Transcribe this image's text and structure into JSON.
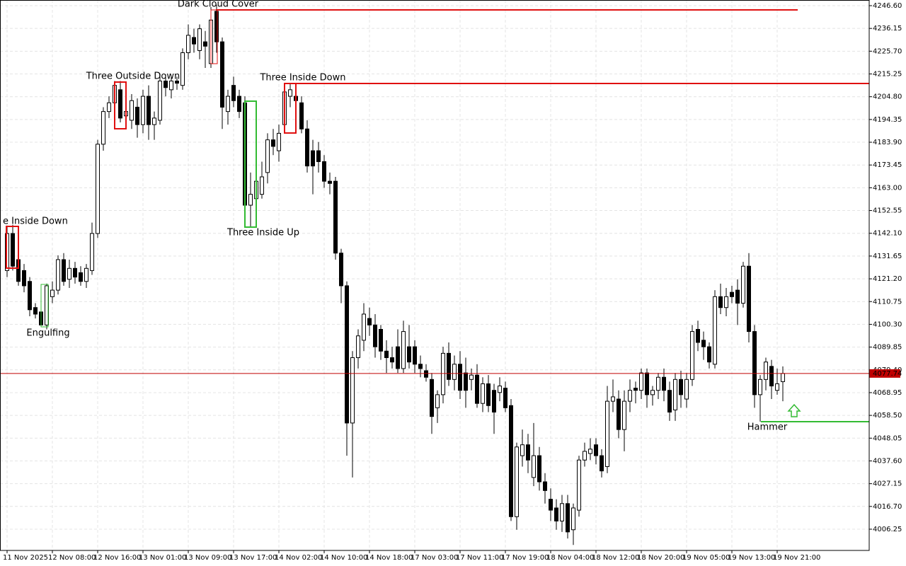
{
  "chart_data": {
    "type": "candlestick",
    "categories": [
      "11 Nov 2025",
      null,
      null,
      null,
      null,
      null,
      null,
      null,
      "12 Nov 08:00",
      null,
      null,
      null,
      null,
      null,
      null,
      null,
      "12 Nov 16:00",
      null,
      null,
      null,
      null,
      null,
      null,
      null,
      "13 Nov 01:00",
      null,
      null,
      null,
      null,
      null,
      null,
      null,
      "13 Nov 09:00",
      null,
      null,
      null,
      null,
      null,
      null,
      null,
      "13 Nov 17:00",
      null,
      null,
      null,
      null,
      null,
      null,
      null,
      "14 Nov 02:00",
      null,
      null,
      null,
      null,
      null,
      null,
      null,
      "14 Nov 10:00",
      null,
      null,
      null,
      null,
      null,
      null,
      null,
      "14 Nov 18:00",
      null,
      null,
      null,
      null,
      null,
      null,
      null,
      "17 Nov 03:00",
      null,
      null,
      null,
      null,
      null,
      null,
      null,
      "17 Nov 11:00",
      null,
      null,
      null,
      null,
      null,
      null,
      null,
      "17 Nov 19:00",
      null,
      null,
      null,
      null,
      null,
      null,
      null,
      "18 Nov 04:00",
      null,
      null,
      null,
      null,
      null,
      null,
      null,
      "18 Nov 12:00",
      null,
      null,
      null,
      null,
      null,
      null,
      null,
      "18 Nov 20:00",
      null,
      null,
      null,
      null,
      null,
      null,
      null,
      "19 Nov 05:00",
      null,
      null,
      null,
      null,
      null,
      null,
      null,
      "19 Nov 13:00",
      null,
      null,
      null,
      null,
      null,
      null,
      null,
      "19 Nov 21:00",
      null
    ],
    "ohlc": [
      [
        4125,
        4145,
        4122,
        4142
      ],
      [
        4142,
        4146,
        4125,
        4127
      ],
      [
        4130,
        4133,
        4118,
        4120
      ],
      [
        4125,
        4128,
        4115,
        4118
      ],
      [
        4120,
        4122,
        4104,
        4107
      ],
      [
        4108,
        4110,
        4103,
        4105
      ],
      [
        4106,
        4108,
        4099,
        4100
      ],
      [
        4100,
        4119,
        4098,
        4118
      ],
      [
        4113,
        4120,
        4110,
        4116
      ],
      [
        4116,
        4132,
        4114,
        4130
      ],
      [
        4130,
        4133,
        4118,
        4120
      ],
      [
        4121,
        4130,
        4117,
        4126
      ],
      [
        4126,
        4129,
        4119,
        4122
      ],
      [
        4124,
        4127,
        4118,
        4120
      ],
      [
        4120,
        4128,
        4117,
        4126
      ],
      [
        4125,
        4147,
        4123,
        4142
      ],
      [
        4142,
        4185,
        4140,
        4183
      ],
      [
        4183,
        4200,
        4180,
        4198
      ],
      [
        4198,
        4205,
        4195,
        4202
      ],
      [
        4202,
        4212,
        4200,
        4210
      ],
      [
        4208,
        4212,
        4193,
        4195
      ],
      [
        4196,
        4200,
        4192,
        4198
      ],
      [
        4194,
        4206,
        4190,
        4203
      ],
      [
        4200,
        4204,
        4186,
        4192
      ],
      [
        4192,
        4208,
        4188,
        4205
      ],
      [
        4205,
        4210,
        4185,
        4192
      ],
      [
        4192,
        4198,
        4185,
        4195
      ],
      [
        4194,
        4214,
        4192,
        4212
      ],
      [
        4212,
        4215,
        4205,
        4209
      ],
      [
        4208,
        4214,
        4204,
        4212
      ],
      [
        4212,
        4214,
        4208,
        4211
      ],
      [
        4210,
        4227,
        4208,
        4225
      ],
      [
        4225,
        4238,
        4222,
        4233
      ],
      [
        4232,
        4236,
        4225,
        4229
      ],
      [
        4226,
        4238,
        4222,
        4236
      ],
      [
        4230,
        4235,
        4218,
        4228
      ],
      [
        4220,
        4246,
        4218,
        4240
      ],
      [
        4244,
        4247,
        4225,
        4230
      ],
      [
        4230,
        4232,
        4190,
        4200
      ],
      [
        4198,
        4208,
        4192,
        4205
      ],
      [
        4210,
        4214,
        4200,
        4203
      ],
      [
        4205,
        4208,
        4195,
        4198
      ],
      [
        4202,
        4205,
        4145,
        4155
      ],
      [
        4155,
        4170,
        4145,
        4160
      ],
      [
        4158,
        4172,
        4155,
        4166
      ],
      [
        4160,
        4175,
        4158,
        4168
      ],
      [
        4170,
        4188,
        4165,
        4185
      ],
      [
        4185,
        4190,
        4178,
        4182
      ],
      [
        4180,
        4192,
        4175,
        4188
      ],
      [
        4192,
        4210,
        4188,
        4207
      ],
      [
        4205,
        4211,
        4200,
        4208
      ],
      [
        4205,
        4207,
        4196,
        4203
      ],
      [
        4202,
        4205,
        4188,
        4190
      ],
      [
        4190,
        4194,
        4170,
        4173
      ],
      [
        4180,
        4185,
        4160,
        4173
      ],
      [
        4180,
        4184,
        4170,
        4175
      ],
      [
        4175,
        4178,
        4163,
        4166
      ],
      [
        4166,
        4170,
        4160,
        4165
      ],
      [
        4166,
        4168,
        4130,
        4133
      ],
      [
        4133,
        4135,
        4110,
        4118
      ],
      [
        4118,
        4120,
        4040,
        4055
      ],
      [
        4055,
        4088,
        4030,
        4085
      ],
      [
        4085,
        4098,
        4080,
        4095
      ],
      [
        4093,
        4110,
        4088,
        4105
      ],
      [
        4103,
        4108,
        4095,
        4100
      ],
      [
        4100,
        4105,
        4085,
        4090
      ],
      [
        4098,
        4100,
        4084,
        4088
      ],
      [
        4088,
        4093,
        4078,
        4085
      ],
      [
        4085,
        4090,
        4080,
        4083
      ],
      [
        4090,
        4098,
        4078,
        4080
      ],
      [
        4080,
        4102,
        4078,
        4097
      ],
      [
        4090,
        4100,
        4080,
        4083
      ],
      [
        4090,
        4093,
        4078,
        4082
      ],
      [
        4082,
        4086,
        4076,
        4080
      ],
      [
        4079,
        4082,
        4074,
        4076
      ],
      [
        4075,
        4078,
        4050,
        4058
      ],
      [
        4062,
        4070,
        4055,
        4068
      ],
      [
        4068,
        4090,
        4064,
        4087
      ],
      [
        4087,
        4092,
        4072,
        4075
      ],
      [
        4075,
        4086,
        4070,
        4082
      ],
      [
        4082,
        4088,
        4066,
        4070
      ],
      [
        4078,
        4085,
        4062,
        4070
      ],
      [
        4075,
        4080,
        4070,
        4077
      ],
      [
        4077,
        4082,
        4062,
        4064
      ],
      [
        4064,
        4076,
        4060,
        4073
      ],
      [
        4073,
        4077,
        4060,
        4063
      ],
      [
        4070,
        4073,
        4050,
        4060
      ],
      [
        4069,
        4076,
        4065,
        4072
      ],
      [
        4071,
        4074,
        4060,
        4062
      ],
      [
        4063,
        4066,
        4010,
        4012
      ],
      [
        4012,
        4046,
        4006,
        4044
      ],
      [
        4040,
        4052,
        4035,
        4045
      ],
      [
        4045,
        4050,
        4032,
        4038
      ],
      [
        4030,
        4055,
        4026,
        4040
      ],
      [
        4040,
        4044,
        4024,
        4028
      ],
      [
        4028,
        4032,
        4018,
        4024
      ],
      [
        4020,
        4025,
        4010,
        4015
      ],
      [
        4016,
        4020,
        4006,
        4010
      ],
      [
        4010,
        4022,
        4005,
        4018
      ],
      [
        4018,
        4022,
        4002,
        4005
      ],
      [
        4006,
        4018,
        3999,
        4016
      ],
      [
        4015,
        4040,
        4012,
        4038
      ],
      [
        4038,
        4046,
        4035,
        4042
      ],
      [
        4041,
        4048,
        4038,
        4043
      ],
      [
        4045,
        4048,
        4036,
        4040
      ],
      [
        4040,
        4043,
        4030,
        4033
      ],
      [
        4035,
        4072,
        4032,
        4065
      ],
      [
        4065,
        4075,
        4060,
        4067
      ],
      [
        4066,
        4070,
        4048,
        4052
      ],
      [
        4052,
        4070,
        4042,
        4065
      ],
      [
        4065,
        4075,
        4060,
        4070
      ],
      [
        4071,
        4074,
        4064,
        4070
      ],
      [
        4070,
        4080,
        4066,
        4078
      ],
      [
        4078,
        4080,
        4062,
        4068
      ],
      [
        4068,
        4072,
        4063,
        4070
      ],
      [
        4070,
        4078,
        4066,
        4076
      ],
      [
        4076,
        4080,
        4065,
        4070
      ],
      [
        4070,
        4074,
        4056,
        4060
      ],
      [
        4061,
        4078,
        4056,
        4075
      ],
      [
        4075,
        4079,
        4062,
        4068
      ],
      [
        4066,
        4078,
        4062,
        4075
      ],
      [
        4075,
        4100,
        4072,
        4097
      ],
      [
        4098,
        4102,
        4088,
        4092
      ],
      [
        4093,
        4097,
        4084,
        4090
      ],
      [
        4090,
        4092,
        4080,
        4083
      ],
      [
        4082,
        4116,
        4080,
        4113
      ],
      [
        4113,
        4119,
        4105,
        4108
      ],
      [
        4108,
        4117,
        4104,
        4113
      ],
      [
        4115,
        4118,
        4110,
        4113
      ],
      [
        4116,
        4121,
        4100,
        4110
      ],
      [
        4110,
        4129,
        4108,
        4127
      ],
      [
        4127,
        4133,
        4092,
        4097
      ],
      [
        4097,
        4100,
        4062,
        4068
      ],
      [
        4068,
        4077,
        4055.6,
        4075
      ],
      [
        4075,
        4085,
        4070,
        4083
      ],
      [
        4081,
        4084,
        4066,
        4072
      ],
      [
        4070,
        4080,
        4068,
        4073
      ],
      [
        4074,
        4081,
        4065,
        4077.74
      ]
    ],
    "ylim": [
      3996.5,
      4249.2
    ],
    "yticks": [
      {
        "value": 4246.6,
        "label": "4246.60"
      },
      4236.15,
      {
        "value": 4225.7,
        "label": "4225.70"
      },
      4215.25,
      {
        "value": 4204.8,
        "label": "4204.80"
      },
      4194.35,
      {
        "value": 4183.9,
        "label": "4183.90"
      },
      4173.45,
      {
        "value": 4163,
        "label": "4163.00"
      },
      4152.55,
      {
        "value": 4142.1,
        "label": "4142.10"
      },
      4131.65,
      {
        "value": 4121.2,
        "label": "4121.20"
      },
      4110.75,
      {
        "value": 4100.3,
        "label": "4100.30"
      },
      4089.85,
      {
        "value": 4079.4,
        "label": "4079.40"
      },
      4068.95,
      {
        "value": 4058.5,
        "label": "4058.50"
      },
      4048.05,
      {
        "value": 4037.6,
        "label": "4037.60"
      },
      4027.15,
      {
        "value": 4016.7,
        "label": "4016.70"
      },
      4006.25
    ],
    "grid": true,
    "up_color": "#ffffff",
    "down_color": "#000000",
    "price_line": 4077.74,
    "price_line_color": "#c00000",
    "annotations": [
      {
        "label": "e Inside Down",
        "color": "#e01010"
      },
      {
        "label": "Engulfing",
        "color": "#33bb33"
      },
      {
        "label": "Three Outside Down",
        "color": "#e01010"
      },
      {
        "label": "Dark Cloud Cover",
        "color": "#e01010"
      },
      {
        "label": "Three Inside Up",
        "color": "#33bb33"
      },
      {
        "label": "Three Inside Down",
        "color": "#e01010"
      },
      {
        "label": "Hammer",
        "color": "#33bb33"
      }
    ]
  }
}
